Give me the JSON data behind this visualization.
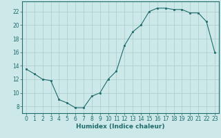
{
  "x": [
    0,
    1,
    2,
    3,
    4,
    5,
    6,
    7,
    8,
    9,
    10,
    11,
    12,
    13,
    14,
    15,
    16,
    17,
    18,
    19,
    20,
    21,
    22,
    23
  ],
  "y": [
    13.5,
    12.8,
    12.0,
    11.8,
    9.0,
    8.5,
    7.8,
    7.8,
    9.5,
    10.0,
    12.0,
    13.2,
    17.0,
    19.0,
    20.0,
    22.0,
    22.5,
    22.5,
    22.3,
    22.3,
    21.8,
    21.8,
    20.5,
    16.0
  ],
  "line_color": "#1e6b6b",
  "marker_color": "#1e6b6b",
  "bg_color": "#cce8e8",
  "grid_major_color": "#aacccc",
  "grid_minor_color": "#bbdddd",
  "xlabel": "Humidex (Indice chaleur)",
  "xlim": [
    -0.5,
    23.5
  ],
  "ylim": [
    7.0,
    23.5
  ],
  "yticks": [
    8,
    10,
    12,
    14,
    16,
    18,
    20,
    22
  ],
  "xticks": [
    0,
    1,
    2,
    3,
    4,
    5,
    6,
    7,
    8,
    9,
    10,
    11,
    12,
    13,
    14,
    15,
    16,
    17,
    18,
    19,
    20,
    21,
    22,
    23
  ],
  "xlabel_fontsize": 6.5,
  "tick_fontsize": 5.5
}
